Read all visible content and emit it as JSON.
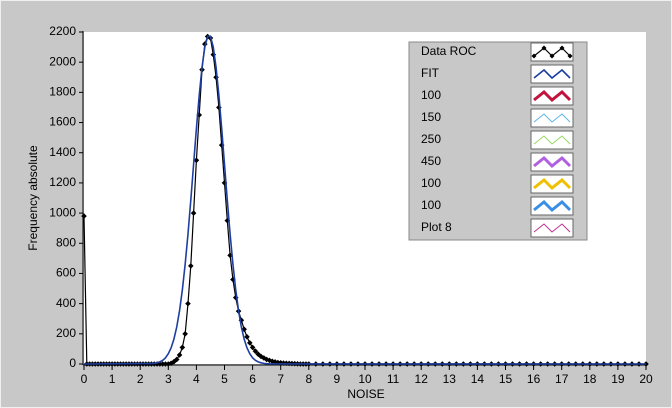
{
  "chart_data": {
    "type": "line",
    "x_label": "NOISE",
    "y_label": "Frequency absolute",
    "xlim": [
      0,
      20
    ],
    "ylim": [
      0,
      2200
    ],
    "xticks": [
      0,
      1,
      2,
      3,
      4,
      5,
      6,
      7,
      8,
      9,
      10,
      11,
      12,
      13,
      14,
      15,
      16,
      17,
      18,
      19,
      20
    ],
    "yticks": [
      0,
      200,
      400,
      600,
      800,
      1000,
      1200,
      1400,
      1600,
      1800,
      2000,
      2200
    ],
    "grid": false,
    "legend": "upper right",
    "series": [
      {
        "name": "Data ROC",
        "color": "#000000",
        "line_width": 1.2,
        "marker": "diamond",
        "x": [
          0,
          0.1,
          0.2,
          0.3,
          0.4,
          0.5,
          0.6,
          0.7,
          0.8,
          0.9,
          1,
          1.1,
          1.2,
          1.3,
          1.4,
          1.5,
          1.6,
          1.7,
          1.8,
          1.9,
          2,
          2.1,
          2.2,
          2.3,
          2.4,
          2.5,
          2.6,
          2.7,
          2.8,
          2.9,
          3,
          3.1,
          3.2,
          3.3,
          3.4,
          3.5,
          3.6,
          3.7,
          3.8,
          3.9,
          4,
          4.1,
          4.2,
          4.3,
          4.4,
          4.5,
          4.6,
          4.7,
          4.8,
          4.9,
          5,
          5.1,
          5.2,
          5.3,
          5.4,
          5.5,
          5.6,
          5.7,
          5.8,
          5.9,
          6,
          6.1,
          6.2,
          6.3,
          6.4,
          6.5,
          6.6,
          6.7,
          6.8,
          6.9,
          7,
          7.1,
          7.2,
          7.3,
          7.4,
          7.5,
          7.6,
          7.7,
          7.8,
          7.9,
          8,
          8.25,
          8.5,
          8.75,
          9,
          9.25,
          9.5,
          9.75,
          10,
          10.25,
          10.5,
          10.75,
          11,
          11.25,
          11.5,
          11.75,
          12,
          12.25,
          12.5,
          12.75,
          13,
          13.25,
          13.5,
          13.75,
          14,
          14.25,
          14.5,
          14.75,
          15,
          15.25,
          15.5,
          15.75,
          16,
          16.25,
          16.5,
          16.75,
          17,
          17.25,
          17.5,
          17.75,
          18,
          18.25,
          18.5,
          18.75,
          19,
          19.25,
          19.5,
          19.75,
          20
        ],
        "values": [
          980,
          0,
          0,
          0,
          0,
          0,
          0,
          0,
          0,
          0,
          0,
          0,
          0,
          0,
          0,
          0,
          0,
          0,
          0,
          0,
          0,
          0,
          0,
          0,
          0,
          0,
          0,
          0,
          0,
          0,
          0,
          5,
          15,
          30,
          60,
          110,
          200,
          400,
          650,
          1000,
          1350,
          1650,
          1950,
          2120,
          2170,
          2160,
          2050,
          1900,
          1700,
          1450,
          1200,
          950,
          720,
          560,
          440,
          350,
          290,
          230,
          180,
          140,
          110,
          85,
          65,
          50,
          40,
          30,
          24,
          18,
          14,
          10,
          8,
          6,
          5,
          4,
          3,
          2,
          1,
          0,
          0,
          0,
          0,
          0,
          0,
          0,
          0,
          0,
          0,
          0,
          0,
          0,
          0,
          0,
          0,
          0,
          0,
          0,
          0,
          0,
          0,
          0,
          0,
          0,
          0,
          0,
          0,
          0,
          0,
          0,
          0,
          0,
          0,
          0,
          0,
          0,
          0,
          0,
          0,
          0,
          0,
          0,
          0,
          0,
          0,
          0,
          0,
          0,
          0,
          0,
          0
        ]
      },
      {
        "name": "FIT",
        "color": "#1f3fa0",
        "line_width": 1.6,
        "x": [
          0,
          2.5,
          2.6,
          2.7,
          2.8,
          2.9,
          3,
          3.1,
          3.2,
          3.3,
          3.4,
          3.5,
          3.6,
          3.7,
          3.8,
          3.9,
          4,
          4.1,
          4.2,
          4.3,
          4.4,
          4.5,
          4.6,
          4.7,
          4.8,
          4.9,
          5,
          5.1,
          5.2,
          5.3,
          5.4,
          5.5,
          5.6,
          5.7,
          5.8,
          5.9,
          6,
          6.1,
          6.2,
          6.3,
          6.4,
          6.5,
          6.6,
          20
        ],
        "values": [
          0,
          4,
          8,
          14,
          24,
          41,
          68,
          107,
          165,
          245,
          353,
          491,
          661,
          860,
          1085,
          1322,
          1560,
          1780,
          1966,
          2100,
          2171,
          2171,
          2100,
          1966,
          1780,
          1560,
          1322,
          1085,
          860,
          661,
          491,
          353,
          245,
          165,
          107,
          68,
          41,
          24,
          14,
          8,
          4,
          2,
          1,
          0
        ]
      },
      {
        "name": "100",
        "color": "#c0143c",
        "line_width": 3,
        "x": [],
        "values": []
      },
      {
        "name": "150",
        "color": "#5ab4e6",
        "line_width": 1,
        "x": [],
        "values": []
      },
      {
        "name": "250",
        "color": "#98d860",
        "line_width": 1,
        "x": [],
        "values": []
      },
      {
        "name": "450",
        "color": "#b060e0",
        "line_width": 3,
        "x": [],
        "values": []
      },
      {
        "name": "100",
        "color": "#f0c000",
        "line_width": 3,
        "x": [],
        "values": []
      },
      {
        "name": "100",
        "color": "#3a8ee6",
        "line_width": 3,
        "x": [],
        "values": []
      },
      {
        "name": "Plot 8",
        "color": "#c03090",
        "line_width": 1,
        "x": [],
        "values": []
      }
    ]
  }
}
